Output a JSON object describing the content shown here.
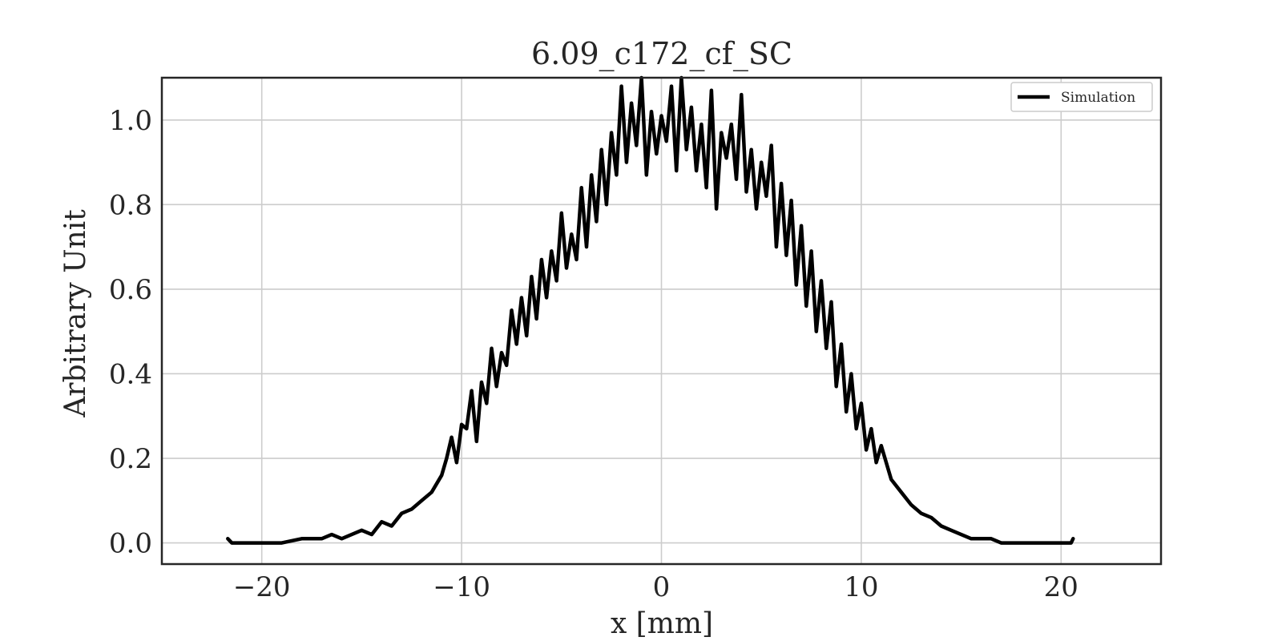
{
  "chart_data": {
    "type": "line",
    "title": "6.09_c172_cf_SC",
    "xlabel": "x [mm]",
    "ylabel": "Arbitrary Unit",
    "xlim": [
      -25,
      25
    ],
    "ylim": [
      -0.05,
      1.1
    ],
    "xticks": [
      -20,
      -10,
      0,
      10,
      20
    ],
    "xtick_labels": [
      "−20",
      "−10",
      "0",
      "10",
      "20"
    ],
    "yticks": [
      0.0,
      0.2,
      0.4,
      0.6,
      0.8,
      1.0
    ],
    "ytick_labels": [
      "0.0",
      "0.2",
      "0.4",
      "0.6",
      "0.8",
      "1.0"
    ],
    "grid": true,
    "legend": "top-right",
    "colors": {
      "series": "#000000",
      "grid": "#cccccc",
      "frame": "#262626"
    },
    "series": [
      {
        "name": "Simulation",
        "shape": "gaussian with sampling noise",
        "x": [
          -21.7,
          -21.5,
          -20,
          -19,
          -18,
          -17,
          -16.5,
          -16,
          -15.5,
          -15,
          -14.5,
          -14,
          -13.5,
          -13,
          -12.5,
          -12,
          -11.5,
          -11,
          -10.75,
          -10.5,
          -10.25,
          -10,
          -9.75,
          -9.5,
          -9.25,
          -9,
          -8.75,
          -8.5,
          -8.25,
          -8,
          -7.75,
          -7.5,
          -7.25,
          -7,
          -6.75,
          -6.5,
          -6.25,
          -6,
          -5.75,
          -5.5,
          -5.25,
          -5,
          -4.75,
          -4.5,
          -4.25,
          -4,
          -3.75,
          -3.5,
          -3.25,
          -3,
          -2.75,
          -2.5,
          -2.25,
          -2,
          -1.75,
          -1.5,
          -1.25,
          -1,
          -0.75,
          -0.5,
          -0.25,
          0,
          0.25,
          0.5,
          0.75,
          1,
          1.25,
          1.5,
          1.75,
          2,
          2.25,
          2.5,
          2.75,
          3,
          3.25,
          3.5,
          3.75,
          4,
          4.25,
          4.5,
          4.75,
          5,
          5.25,
          5.5,
          5.75,
          6,
          6.25,
          6.5,
          6.75,
          7,
          7.25,
          7.5,
          7.75,
          8,
          8.25,
          8.5,
          8.75,
          9,
          9.25,
          9.5,
          9.75,
          10,
          10.25,
          10.5,
          10.75,
          11,
          11.5,
          12,
          12.5,
          13,
          13.5,
          14,
          14.5,
          15,
          15.5,
          16,
          16.5,
          17,
          18,
          19,
          20,
          20.5,
          20.6
        ],
        "y": [
          0.01,
          0.0,
          0.0,
          0.0,
          0.01,
          0.01,
          0.02,
          0.01,
          0.02,
          0.03,
          0.02,
          0.05,
          0.04,
          0.07,
          0.08,
          0.1,
          0.12,
          0.16,
          0.2,
          0.25,
          0.19,
          0.28,
          0.27,
          0.36,
          0.24,
          0.38,
          0.33,
          0.46,
          0.37,
          0.45,
          0.42,
          0.55,
          0.47,
          0.58,
          0.49,
          0.63,
          0.53,
          0.67,
          0.58,
          0.69,
          0.62,
          0.78,
          0.65,
          0.73,
          0.67,
          0.84,
          0.7,
          0.87,
          0.76,
          0.93,
          0.8,
          0.97,
          0.87,
          1.08,
          0.9,
          1.04,
          0.94,
          1.1,
          0.87,
          1.02,
          0.92,
          1.01,
          0.95,
          1.08,
          0.88,
          1.1,
          0.93,
          1.03,
          0.88,
          0.99,
          0.84,
          1.07,
          0.79,
          0.97,
          0.91,
          0.99,
          0.86,
          1.06,
          0.83,
          0.93,
          0.79,
          0.9,
          0.82,
          0.94,
          0.7,
          0.85,
          0.68,
          0.81,
          0.61,
          0.75,
          0.56,
          0.69,
          0.5,
          0.62,
          0.46,
          0.57,
          0.37,
          0.47,
          0.31,
          0.4,
          0.27,
          0.33,
          0.22,
          0.27,
          0.19,
          0.23,
          0.15,
          0.12,
          0.09,
          0.07,
          0.06,
          0.04,
          0.03,
          0.02,
          0.01,
          0.01,
          0.01,
          0.0,
          0.0,
          0.0,
          0.0,
          0.0,
          0.01
        ]
      }
    ]
  }
}
